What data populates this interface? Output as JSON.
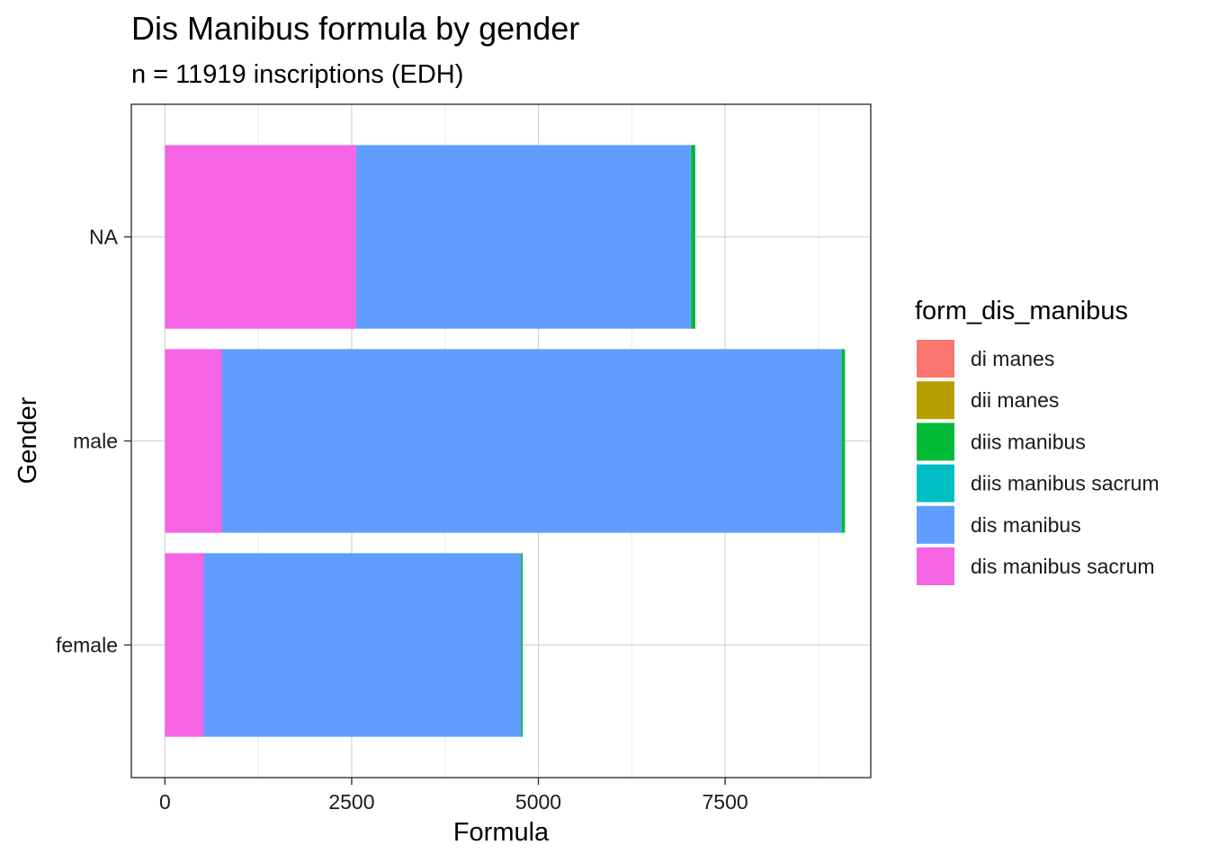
{
  "chart_data": {
    "type": "bar",
    "orientation": "horizontal",
    "stacked": true,
    "title": "Dis Manibus formula by gender",
    "subtitle": "n = 11919 inscriptions (EDH)",
    "xlabel": "Formula",
    "ylabel": "Gender",
    "categories": [
      "female",
      "male",
      "NA"
    ],
    "xlim": [
      -450,
      9450
    ],
    "xticks": [
      0,
      2500,
      5000,
      7500
    ],
    "xtick_labels": [
      "0",
      "2500",
      "5000",
      "7500"
    ],
    "grid": true,
    "legend": {
      "title": "form_dis_manibus",
      "position": "right"
    },
    "series": [
      {
        "name": "di manes",
        "color": "#F8766D",
        "values": [
          0,
          0,
          0
        ]
      },
      {
        "name": "dii manes",
        "color": "#B79F00",
        "values": [
          0,
          0,
          0
        ]
      },
      {
        "name": "diis manibus",
        "color": "#00BA38",
        "values": [
          20,
          45,
          55
        ]
      },
      {
        "name": "diis manibus sacrum",
        "color": "#00BFC4",
        "values": [
          0,
          0,
          5
        ]
      },
      {
        "name": "dis manibus",
        "color": "#619CFF",
        "values": [
          4250,
          8300,
          4480
        ]
      },
      {
        "name": "dis manibus sacrum",
        "color": "#F564E3",
        "values": [
          520,
          760,
          2560
        ]
      }
    ],
    "stack_order_from_zero": [
      "dis manibus sacrum",
      "dis manibus",
      "diis manibus sacrum",
      "diis manibus",
      "dii manes",
      "di manes"
    ]
  }
}
